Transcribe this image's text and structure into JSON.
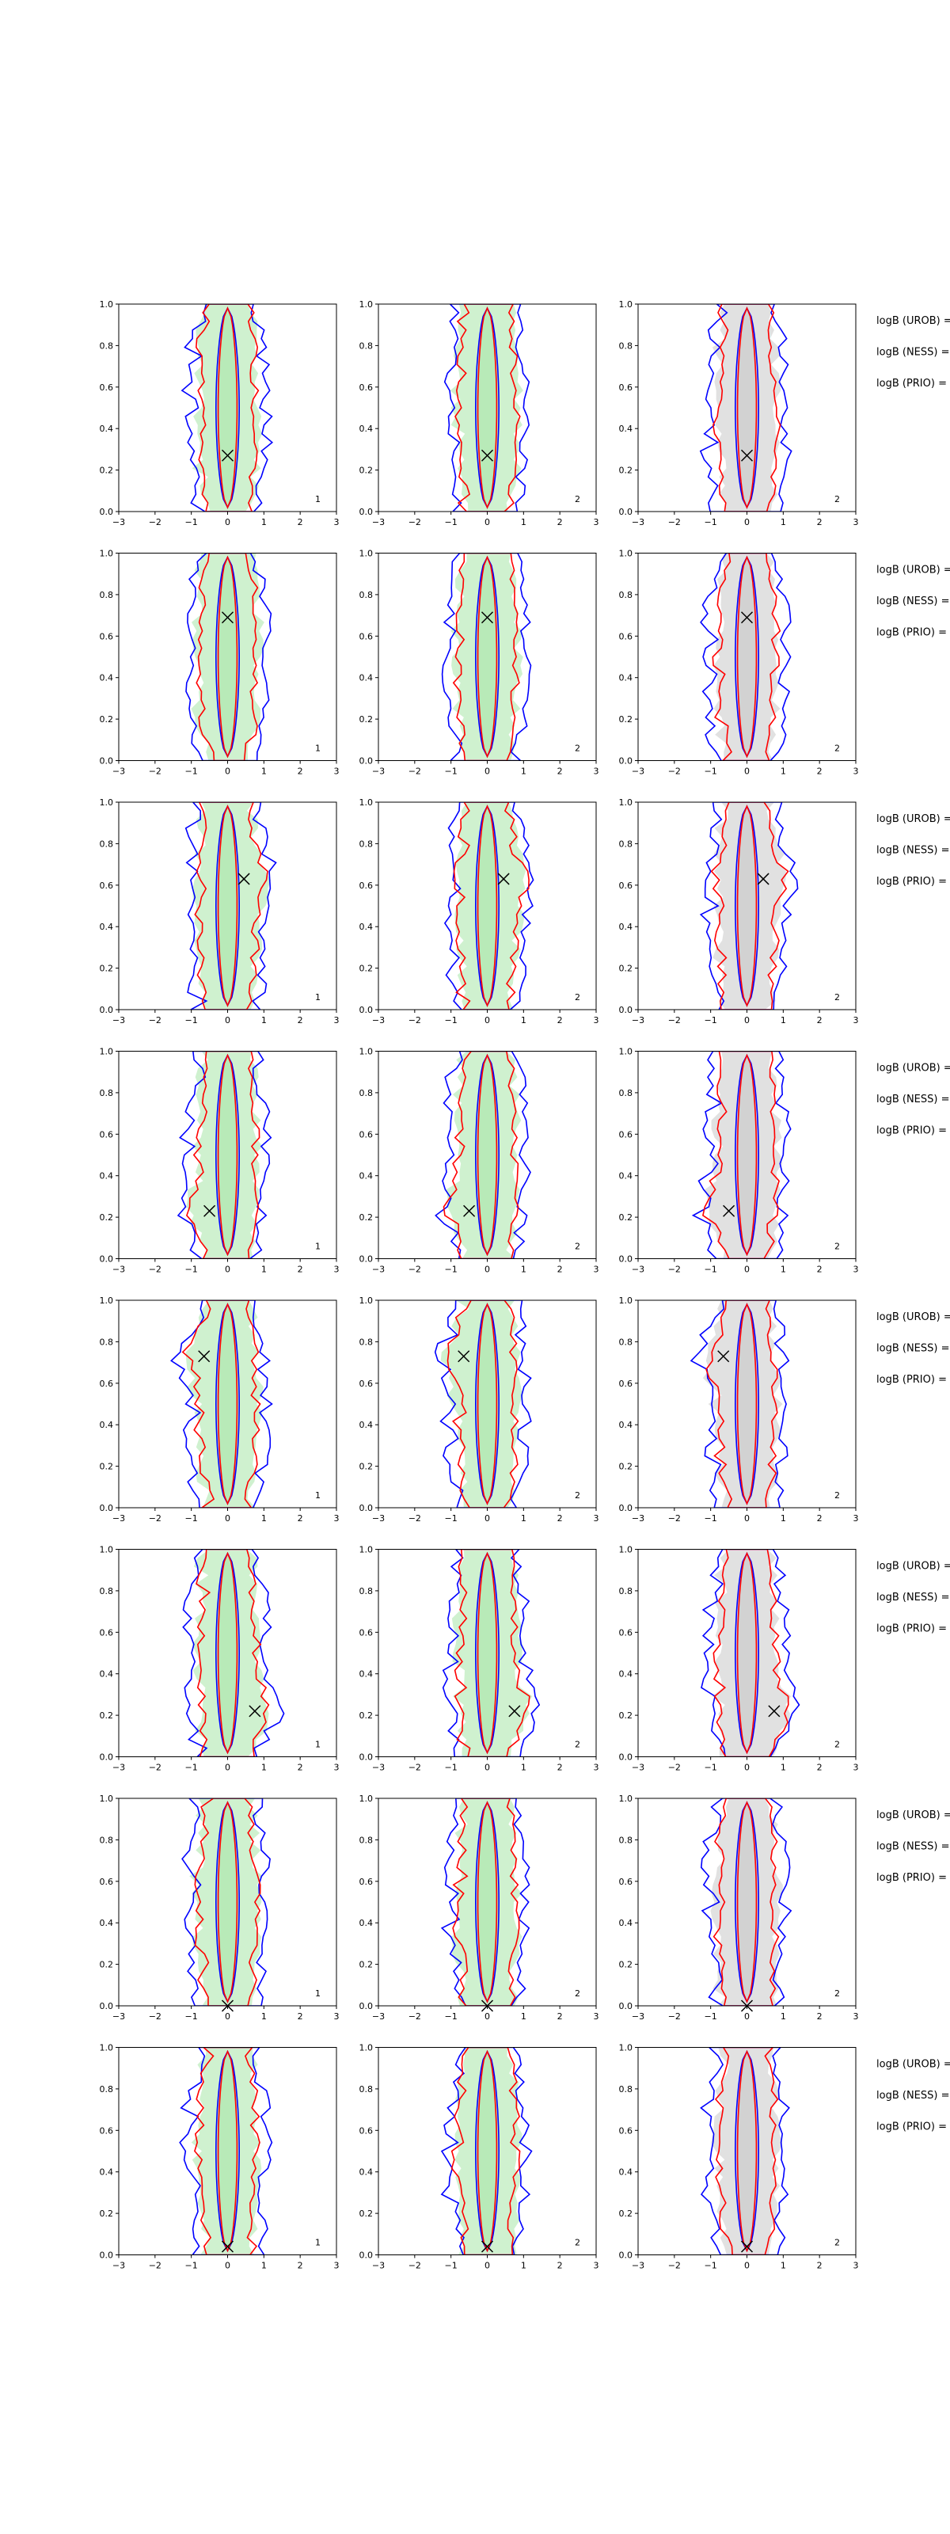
{
  "chart_data": {
    "type": "contour",
    "xlim": [
      -3,
      3
    ],
    "ylim": [
      0,
      1
    ],
    "xticks": [
      "−3",
      "−2",
      "−1",
      "0",
      "1",
      "2",
      "3"
    ],
    "yticks": [
      "0.0",
      "0.2",
      "0.4",
      "0.6",
      "0.8",
      "1.0"
    ],
    "colors": {
      "blue": "#0000ff",
      "red": "#ff0000",
      "green_fill": "#a8e6a8",
      "gray_fill": "#c8c8c8",
      "marker": "#000000"
    },
    "logb_labels": [
      "logB (UROB) =",
      "logB (NESS) =",
      "logB (PRIO) ="
    ],
    "panel_columns": [
      {
        "label": "1",
        "fill": "green"
      },
      {
        "label": "2",
        "fill": "green"
      },
      {
        "label": "2",
        "fill": "gray"
      }
    ],
    "rows": [
      {
        "marker": {
          "x": 0.0,
          "y": 0.27
        }
      },
      {
        "marker": {
          "x": 0.0,
          "y": 0.69
        }
      },
      {
        "marker": {
          "x": 0.45,
          "y": 0.63
        }
      },
      {
        "marker": {
          "x": -0.5,
          "y": 0.23
        }
      },
      {
        "marker": {
          "x": -0.65,
          "y": 0.73
        }
      },
      {
        "marker": {
          "x": 0.75,
          "y": 0.22
        }
      },
      {
        "marker": {
          "x": 0.0,
          "y": 0.0
        }
      },
      {
        "marker": {
          "x": 0.0,
          "y": 0.04
        }
      }
    ]
  }
}
